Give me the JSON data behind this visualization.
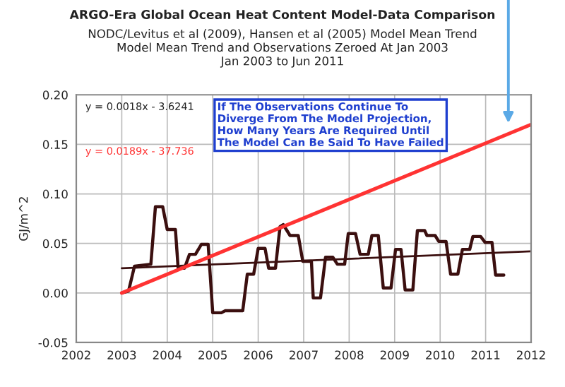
{
  "chart_data": {
    "type": "line",
    "title": "ARGO-Era Global Ocean Heat Content Model-Data Comparison",
    "subtitle": "NODC/Levitus et al (2009), Hansen et al (2005) Model Mean Trend\nModel Mean Trend and Observations Zeroed At Jan 2003\nJan 2003 to Jun 2011",
    "ylabel": "GJ/m^2",
    "series": [
      {
        "color": "#3b0f0f",
        "x": [
          2003.0,
          2003.15,
          2003.28,
          2003.64,
          2003.74,
          2003.9,
          2004.0,
          2004.18,
          2004.24,
          2004.38,
          2004.49,
          2004.62,
          2004.75,
          2004.9,
          2005.0,
          2005.19,
          2005.27,
          2005.66,
          2005.76,
          2005.9,
          2006.0,
          2006.15,
          2006.23,
          2006.38,
          2006.48,
          2006.55,
          2006.7,
          2006.88,
          2006.98,
          2007.17,
          2007.21,
          2007.37,
          2007.48,
          2007.64,
          2007.74,
          2007.9,
          2007.98,
          2008.14,
          2008.24,
          2008.42,
          2008.5,
          2008.64,
          2008.75,
          2008.92,
          2009.02,
          2009.14,
          2009.23,
          2009.4,
          2009.5,
          2009.66,
          2009.71,
          2009.89,
          2009.97,
          2010.13,
          2010.23,
          2010.39,
          2010.49,
          2010.65,
          2010.72,
          2010.89,
          2010.99,
          2011.14,
          2011.22,
          2011.4
        ],
        "values": [
          0.0,
          0.002,
          0.027,
          0.029,
          0.087,
          0.087,
          0.064,
          0.064,
          0.025,
          0.025,
          0.039,
          0.039,
          0.049,
          0.049,
          -0.02,
          -0.02,
          -0.018,
          -0.018,
          0.019,
          0.019,
          0.045,
          0.045,
          0.025,
          0.025,
          0.067,
          0.069,
          0.058,
          0.058,
          0.032,
          0.032,
          -0.005,
          -0.005,
          0.036,
          0.036,
          0.029,
          0.029,
          0.06,
          0.06,
          0.039,
          0.039,
          0.058,
          0.058,
          0.005,
          0.005,
          0.044,
          0.044,
          0.003,
          0.003,
          0.063,
          0.063,
          0.058,
          0.058,
          0.052,
          0.052,
          0.019,
          0.019,
          0.044,
          0.044,
          0.057,
          0.057,
          0.051,
          0.051,
          0.018,
          0.018
        ]
      },
      {
        "color": "#3b0f0f",
        "x": [
          2003.0,
          2012.0
        ],
        "values": [
          0.025,
          0.042
        ]
      },
      {
        "color": "#ff3333",
        "x": [
          2003.0,
          2012.0
        ],
        "values": [
          0.0,
          0.17
        ]
      }
    ],
    "annotations": [
      "y = 0.0018x - 3.6241",
      "y = 0.0189x - 37.736",
      "If The Observations Continue To\nDiverge From The Model Projection,\nHow Many Years Are Required Until\nThe Model Can Be Said To Have Failed"
    ],
    "xlim": [
      2002,
      2012
    ],
    "xticks": [
      2002,
      2003,
      2004,
      2005,
      2006,
      2007,
      2008,
      2009,
      2010,
      2011,
      2012
    ],
    "ylim": [
      -0.05,
      0.2
    ],
    "yticks": [
      {
        "value": -0.05,
        "label": "-0.05"
      },
      {
        "value": 0.0,
        "label": "0.00"
      },
      {
        "value": 0.05,
        "label": "0.05"
      },
      {
        "value": 0.1,
        "label": "0.10"
      },
      {
        "value": 0.15,
        "label": "0.15"
      },
      {
        "value": 0.2,
        "label": "0.20"
      }
    ],
    "grid": true
  }
}
